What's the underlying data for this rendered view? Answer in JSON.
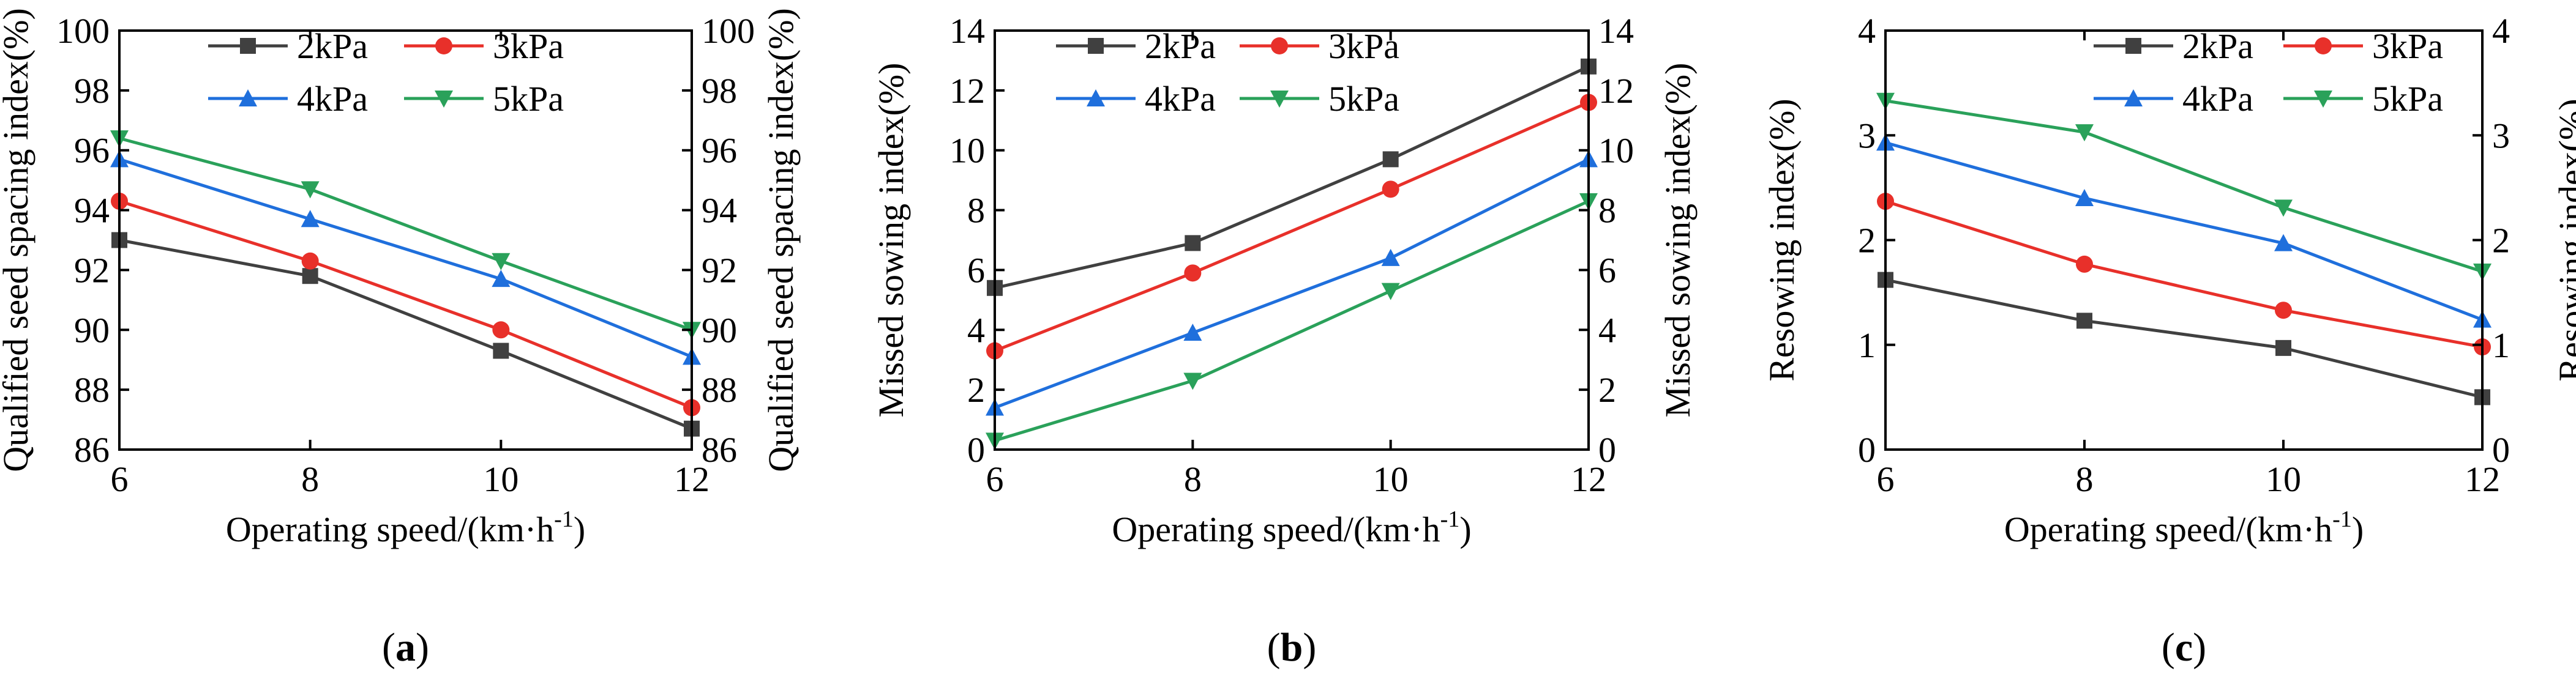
{
  "chart_data": [
    {
      "type": "line",
      "panel_label": "a",
      "xlabel": "Operating speed/(km·h",
      "xlabel_sup": "-1",
      "xlabel_close": ")",
      "ylabel_left": "Qualified seed spacing index(%)",
      "ylabel_right": "Qualified seed spacing index(%)",
      "x": [
        6,
        8,
        10,
        12
      ],
      "xlim": [
        6,
        12
      ],
      "xticks": [
        6,
        8,
        10,
        12
      ],
      "ylim": [
        86,
        100
      ],
      "yticks": [
        86,
        88,
        90,
        92,
        94,
        96,
        98,
        100
      ],
      "legend": "top-center, 2 columns",
      "series": [
        {
          "name": "2kPa",
          "color": "#404040",
          "marker": "square",
          "values": [
            93.0,
            91.8,
            89.3,
            86.7
          ]
        },
        {
          "name": "3kPa",
          "color": "#e8302a",
          "marker": "circle",
          "values": [
            94.3,
            92.3,
            90.0,
            87.4
          ]
        },
        {
          "name": "4kPa",
          "color": "#1f6fdc",
          "marker": "triangle-up",
          "values": [
            95.7,
            93.7,
            91.7,
            89.1
          ]
        },
        {
          "name": "5kPa",
          "color": "#2aa15a",
          "marker": "triangle-down",
          "values": [
            96.4,
            94.7,
            92.3,
            90.0
          ]
        }
      ]
    },
    {
      "type": "line",
      "panel_label": "b",
      "xlabel": "Operating speed/(km·h",
      "xlabel_sup": "-1",
      "xlabel_close": ")",
      "ylabel_left": "Missed sowing index(%)",
      "ylabel_right": "Missed sowing index(%)",
      "x": [
        6,
        8,
        10,
        12
      ],
      "xlim": [
        6,
        12
      ],
      "xticks": [
        6,
        8,
        10,
        12
      ],
      "ylim": [
        0,
        14
      ],
      "yticks": [
        0,
        2,
        4,
        6,
        8,
        10,
        12,
        14
      ],
      "legend": "top-left, 2 columns",
      "series": [
        {
          "name": "2kPa",
          "color": "#404040",
          "marker": "square",
          "values": [
            5.4,
            6.9,
            9.7,
            12.8
          ]
        },
        {
          "name": "3kPa",
          "color": "#e8302a",
          "marker": "circle",
          "values": [
            3.3,
            5.9,
            8.7,
            11.6
          ]
        },
        {
          "name": "4kPa",
          "color": "#1f6fdc",
          "marker": "triangle-up",
          "values": [
            1.4,
            3.9,
            6.4,
            9.7
          ]
        },
        {
          "name": "5kPa",
          "color": "#2aa15a",
          "marker": "triangle-down",
          "values": [
            0.3,
            2.3,
            5.3,
            8.3
          ]
        }
      ]
    },
    {
      "type": "line",
      "panel_label": "c",
      "xlabel": "Operating speed/(km·h",
      "xlabel_sup": "-1",
      "xlabel_close": ")",
      "ylabel_left": "Resowing index(%)",
      "ylabel_right": "Resowing index(%)",
      "x": [
        6,
        8,
        10,
        12
      ],
      "xlim": [
        6,
        12
      ],
      "xticks": [
        6,
        8,
        10,
        12
      ],
      "ylim": [
        0,
        4
      ],
      "yticks": [
        0,
        1,
        2,
        3,
        4
      ],
      "legend": "top-right, 2 columns",
      "series": [
        {
          "name": "2kPa",
          "color": "#404040",
          "marker": "square",
          "values": [
            1.62,
            1.23,
            0.97,
            0.5
          ]
        },
        {
          "name": "3kPa",
          "color": "#e8302a",
          "marker": "circle",
          "values": [
            2.37,
            1.77,
            1.33,
            0.98
          ]
        },
        {
          "name": "4kPa",
          "color": "#1f6fdc",
          "marker": "triangle-up",
          "values": [
            2.93,
            2.4,
            1.97,
            1.24
          ]
        },
        {
          "name": "5kPa",
          "color": "#2aa15a",
          "marker": "triangle-down",
          "values": [
            3.33,
            3.03,
            2.31,
            1.7
          ]
        }
      ]
    }
  ]
}
